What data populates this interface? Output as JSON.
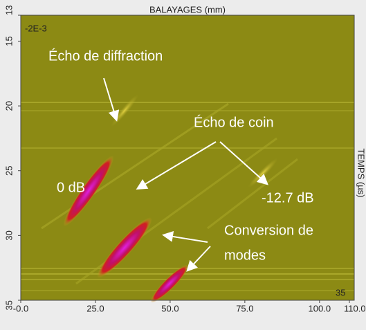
{
  "chart_data": {
    "type": "bscan",
    "x_label": "BALAYAGES (mm)",
    "y_label": "TEMPS (µs)",
    "corner_labels": [
      "-2E-3",
      "35"
    ],
    "xlim": [
      0,
      110
    ],
    "xticks": [
      {
        "value": 0,
        "label": "-0.0"
      },
      {
        "value": 25,
        "label": "25.0"
      },
      {
        "value": 50,
        "label": "50.0"
      },
      {
        "value": 75,
        "label": "75.0"
      },
      {
        "value": 100,
        "label": "100.0"
      },
      {
        "value": 110,
        "label": "110.0"
      }
    ],
    "ylim": [
      13,
      35
    ],
    "yticks": [
      13,
      15,
      20,
      25,
      30,
      35
    ],
    "annotations": [
      "Écho de diffraction",
      "Écho de coin",
      "0 dB",
      "-12.7 dB",
      "Conversion de",
      "modes"
    ]
  }
}
